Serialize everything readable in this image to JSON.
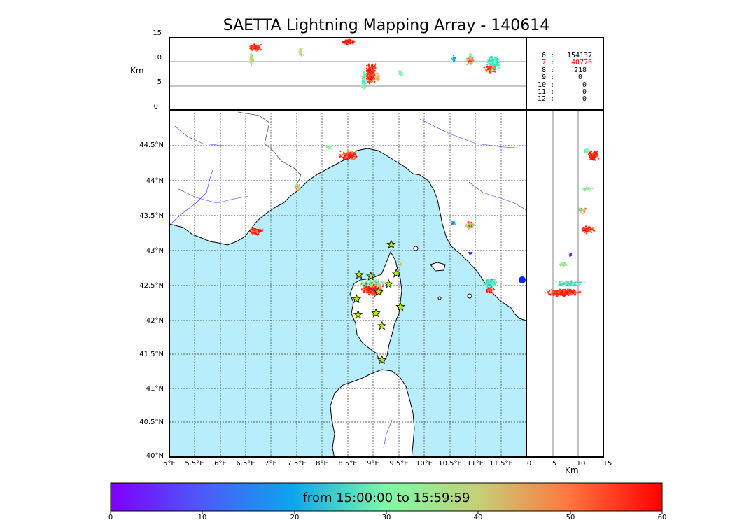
{
  "title": "SAETTA Lightning Mapping Array - 140614",
  "alt_panel": {
    "ylabel": "Km",
    "yticks": [
      "15",
      "10",
      "5",
      "0"
    ]
  },
  "side_panel": {
    "xlabel": "Km",
    "xticks": [
      "0",
      "5",
      "10",
      "15"
    ]
  },
  "stats": [
    {
      "key": "6",
      "value": "154137",
      "highlight": false
    },
    {
      "key": "7",
      "value": "40776",
      "highlight": true
    },
    {
      "key": "8",
      "value": "218",
      "highlight": false
    },
    {
      "key": "9",
      "value": "0",
      "highlight": false
    },
    {
      "key": "10",
      "value": "0",
      "highlight": false
    },
    {
      "key": "11",
      "value": "0",
      "highlight": false
    },
    {
      "key": "12",
      "value": "0",
      "highlight": false
    }
  ],
  "map": {
    "lat_ticks": [
      "44.5°N",
      "44°N",
      "43.5°N",
      "43°N",
      "42.5°N",
      "42°N",
      "41.5°N",
      "41°N",
      "40.5°N",
      "40°N"
    ],
    "lon_ticks": [
      "5°E",
      "5.5°E",
      "6°E",
      "6.5°E",
      "7°E",
      "7.5°E",
      "8°E",
      "8.5°E",
      "9°E",
      "9.5°E",
      "10°E",
      "10.5°E",
      "11°E",
      "11.5°E"
    ],
    "sea_color": "#b8eefc",
    "land_color": "#ffffff",
    "station_color": "#aef000",
    "stations": [
      {
        "lon": 9.35,
        "lat": 43.0
      },
      {
        "lon": 8.72,
        "lat": 42.57
      },
      {
        "lon": 8.95,
        "lat": 42.55
      },
      {
        "lon": 9.45,
        "lat": 42.59
      },
      {
        "lon": 9.3,
        "lat": 42.44
      },
      {
        "lon": 9.1,
        "lat": 42.33
      },
      {
        "lon": 8.67,
        "lat": 42.23
      },
      {
        "lon": 9.53,
        "lat": 42.12
      },
      {
        "lon": 8.7,
        "lat": 42.01
      },
      {
        "lon": 9.05,
        "lat": 42.03
      },
      {
        "lon": 9.17,
        "lat": 41.85
      },
      {
        "lon": 9.17,
        "lat": 41.37
      }
    ]
  },
  "colorbar": {
    "label": "from 15:00:00 to 15:59:59",
    "ticks": [
      "0",
      "10",
      "20",
      "30",
      "40",
      "50",
      "60"
    ]
  }
}
